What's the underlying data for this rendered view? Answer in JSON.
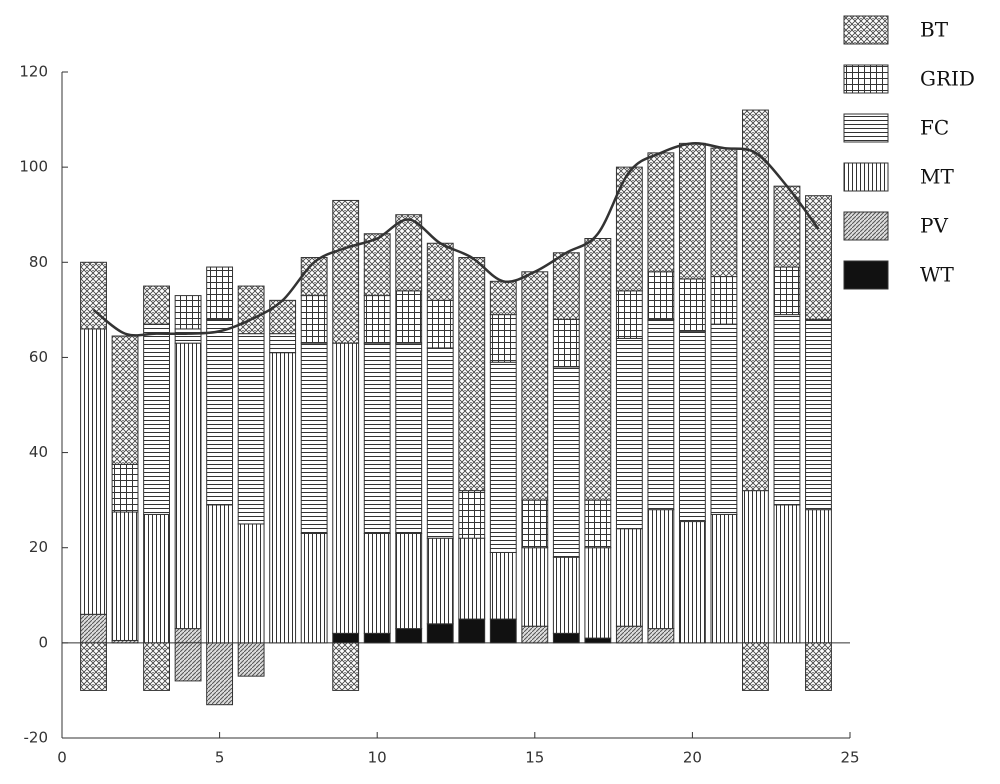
{
  "chart_data": {
    "type": "bar",
    "stacked": true,
    "x": [
      1,
      2,
      3,
      4,
      5,
      6,
      7,
      8,
      9,
      10,
      11,
      12,
      13,
      14,
      15,
      16,
      17,
      18,
      19,
      20,
      21,
      22,
      23,
      24
    ],
    "series": [
      {
        "name": "WT",
        "pattern": "solid",
        "values": [
          0,
          0,
          0,
          0,
          0,
          0,
          0,
          0,
          2,
          2,
          3,
          4,
          5,
          5,
          0,
          2,
          1,
          0,
          0,
          0,
          0,
          0,
          0,
          0
        ],
        "negative_values": [
          null,
          null,
          null,
          null,
          null,
          null,
          null,
          null,
          null,
          null,
          null,
          null,
          null,
          null,
          null,
          null,
          null,
          null,
          null,
          null,
          null,
          null,
          null,
          null
        ]
      },
      {
        "name": "PV",
        "pattern": "diagonal",
        "values": [
          6,
          0.5,
          0,
          3,
          0,
          0,
          0,
          0,
          0,
          0,
          0,
          0,
          0,
          0,
          3.5,
          0,
          0,
          3.5,
          3,
          0,
          0,
          0,
          0,
          0
        ],
        "negative_values": [
          null,
          null,
          null,
          -8,
          -13,
          -7,
          null,
          null,
          null,
          null,
          null,
          null,
          null,
          null,
          null,
          null,
          null,
          null,
          null,
          null,
          null,
          null,
          null,
          null
        ]
      },
      {
        "name": "MT",
        "pattern": "vertical",
        "values": [
          60,
          27,
          27,
          60,
          29,
          25,
          61,
          23,
          61,
          21,
          20,
          18,
          17,
          14,
          16.5,
          16,
          19,
          20.5,
          25,
          25.5,
          27,
          32,
          29,
          28
        ],
        "negative_values": [
          null,
          null,
          null,
          null,
          null,
          null,
          null,
          null,
          null,
          null,
          null,
          null,
          null,
          null,
          null,
          null,
          null,
          null,
          null,
          null,
          null,
          null,
          null,
          null
        ]
      },
      {
        "name": "FC",
        "pattern": "horizontal",
        "values": [
          0,
          0,
          40,
          3,
          39,
          40,
          4,
          40,
          0,
          40,
          40,
          40,
          0,
          40,
          0,
          40,
          0,
          40,
          40,
          40,
          40,
          0,
          40,
          40
        ],
        "negative_values": [
          null,
          null,
          null,
          null,
          null,
          null,
          null,
          null,
          null,
          null,
          null,
          null,
          null,
          null,
          null,
          null,
          null,
          null,
          null,
          null,
          null,
          null,
          null,
          null
        ]
      },
      {
        "name": "GRID",
        "pattern": "grid",
        "values": [
          0,
          10,
          0,
          7,
          11,
          0,
          0,
          10,
          0,
          10,
          11,
          10,
          10,
          10,
          10,
          10,
          10,
          10,
          10,
          11,
          10,
          0,
          10,
          0
        ],
        "negative_values": [
          null,
          null,
          null,
          null,
          null,
          null,
          null,
          null,
          null,
          null,
          null,
          null,
          null,
          null,
          null,
          null,
          null,
          null,
          null,
          null,
          null,
          null,
          null,
          null
        ]
      },
      {
        "name": "BT",
        "pattern": "crosshatch",
        "values": [
          14,
          27,
          8,
          0,
          0,
          10,
          7,
          8,
          30,
          13,
          16,
          12,
          49,
          7,
          48,
          14,
          55,
          26,
          25,
          28.5,
          27,
          80,
          17,
          26
        ],
        "negative_values": [
          -10,
          null,
          -10,
          null,
          null,
          null,
          null,
          null,
          -10,
          null,
          null,
          null,
          null,
          null,
          null,
          null,
          null,
          null,
          null,
          null,
          null,
          -10,
          null,
          -10
        ]
      }
    ],
    "line_values": [
      70,
      65,
      65,
      65,
      65.5,
      68,
      72,
      80,
      83,
      85,
      89,
      84,
      81,
      76,
      78,
      82,
      86,
      99,
      103,
      105,
      104,
      103,
      96,
      87
    ],
    "line_color": "#333333",
    "xlim": [
      0,
      25
    ],
    "xticks": [
      0,
      5,
      10,
      15,
      20,
      25
    ],
    "ylim": [
      -20,
      120
    ],
    "yticks": [
      -20,
      0,
      20,
      40,
      60,
      80,
      100,
      120
    ],
    "legend": "top-right"
  }
}
